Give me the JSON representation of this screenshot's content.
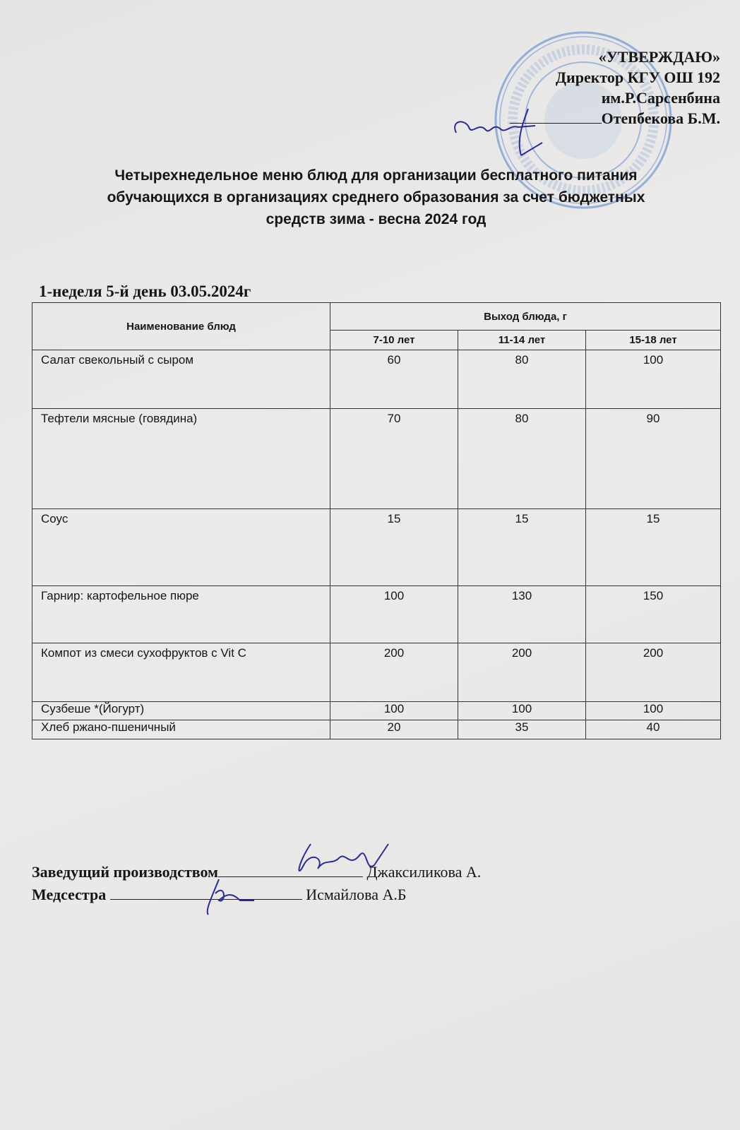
{
  "approval": {
    "heading": "«УТВЕРЖДАЮ»",
    "line1": "Директор КГУ ОШ 192",
    "line2": "им.Р.Сарсенбина",
    "line3": "Отепбекова Б.М."
  },
  "title": {
    "line1": "Четырехнедельное меню блюд для организации бесплатного питания",
    "line2": "обучающихся в организациях среднего образования за счет бюджетных",
    "line3": "средств зима - весна 2024 год"
  },
  "day_line": "1-неделя 5-й день 03.05.2024г",
  "table": {
    "header_name": "Наименование блюд",
    "header_output": "Выход блюда, г",
    "age_groups": [
      "7-10 лет",
      "11-14 лет",
      "15-18 лет"
    ],
    "rows": [
      {
        "name": "Салат свекольный с сыром",
        "values": [
          "60",
          "80",
          "100"
        ]
      },
      {
        "name": "Тефтели мясные (говядина)",
        "values": [
          "70",
          "80",
          "90"
        ]
      },
      {
        "name": "Соус",
        "values": [
          "15",
          "15",
          "15"
        ]
      },
      {
        "name": "Гарнир:  картофельное пюре",
        "values": [
          "100",
          "130",
          "150"
        ]
      },
      {
        "name": "Компот из смеси сухофруктов с Vit C",
        "values": [
          "200",
          "200",
          "200"
        ]
      },
      {
        "name": "Сузбеше *(Йогурт)",
        "values": [
          "100",
          "100",
          "100"
        ]
      },
      {
        "name": "Хлеб ржано-пшеничный",
        "values": [
          "20",
          "35",
          "40"
        ]
      }
    ]
  },
  "signatures": {
    "production_label": "Заведущий производством",
    "production_name": "Джаксиликова А.",
    "nurse_label": "Медсестра",
    "nurse_name": "Исмайлова А.Б"
  },
  "colors": {
    "paper": "#e8e8e6",
    "stamp": "#5b86c9",
    "ink": "#2a2a9a"
  }
}
